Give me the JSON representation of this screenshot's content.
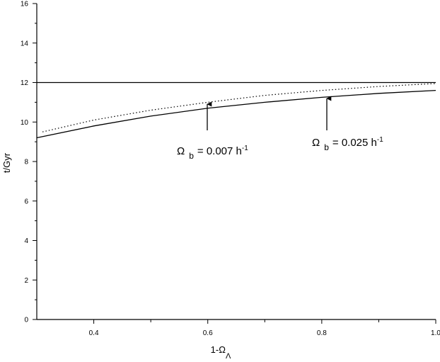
{
  "chart_data": {
    "type": "line",
    "x_label": {
      "text": "1-Ω",
      "sub": "Λ"
    },
    "y_label": "t/Gyr",
    "xlim": [
      0.3,
      1.0
    ],
    "ylim": [
      0,
      16
    ],
    "xticks": [
      0.4,
      0.6,
      0.8,
      {
        "value": 1,
        "label": "1.0"
      }
    ],
    "xminorticks": [
      0.5,
      0.7,
      0.9
    ],
    "yticks": [
      0,
      2,
      4,
      6,
      8,
      10,
      12,
      14,
      16
    ],
    "yminorticks": [
      1,
      3,
      5,
      7,
      9,
      11,
      13,
      15
    ],
    "series": [
      {
        "color": "#000000",
        "style": "solid",
        "x": [
          0.3,
          1.0
        ],
        "values": [
          12,
          12
        ]
      },
      {
        "color": "#000000",
        "style": "dotted",
        "x": [
          0.31,
          0.4,
          0.5,
          0.6,
          0.7,
          0.8,
          0.9,
          1.0
        ],
        "values": [
          9.5,
          10.1,
          10.6,
          11.0,
          11.35,
          11.6,
          11.8,
          11.95
        ]
      },
      {
        "color": "#000000",
        "style": "solid",
        "x": [
          0.3,
          0.4,
          0.5,
          0.6,
          0.7,
          0.8,
          0.9,
          1.0
        ],
        "values": [
          9.2,
          9.8,
          10.3,
          10.7,
          11.0,
          11.25,
          11.45,
          11.6
        ]
      }
    ],
    "annotations": [
      {
        "symbol": "Ω",
        "sub": "b",
        "text": "= 0.007 h",
        "sup": "-1"
      },
      {
        "symbol": "Ω",
        "sub": "b",
        "text": "= 0.025 h",
        "sup": "-1"
      }
    ]
  }
}
